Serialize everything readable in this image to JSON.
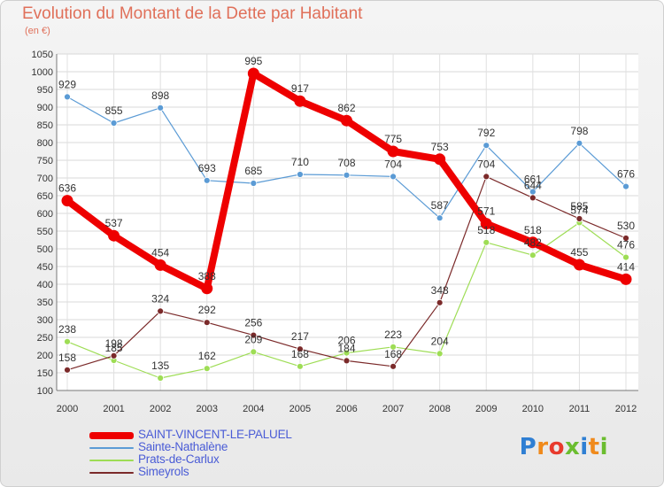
{
  "header": {
    "title": "Evolution du Montant de la Dette par Habitant",
    "subtitle": "(en €)"
  },
  "logo": {
    "text": "Proxiti"
  },
  "chart_data": {
    "type": "line",
    "title": "Evolution du Montant de la Dette par Habitant",
    "subtitle": "(en €)",
    "xlabel": "",
    "ylabel": "",
    "x": [
      "2000",
      "2001",
      "2002",
      "2003",
      "2004",
      "2005",
      "2006",
      "2007",
      "2008",
      "2009",
      "2010",
      "2011",
      "2012"
    ],
    "ylim": [
      100,
      1050
    ],
    "yticks": [
      100,
      150,
      200,
      250,
      300,
      350,
      400,
      450,
      500,
      550,
      600,
      650,
      700,
      750,
      800,
      850,
      900,
      950,
      1000,
      1050
    ],
    "grid": true,
    "legend_position": "bottom-left",
    "series": [
      {
        "name": "SAINT-VINCENT-LE-PALUEL",
        "color": "#ee0000",
        "values": [
          636,
          537,
          454,
          388,
          995,
          917,
          862,
          775,
          753,
          571,
          518,
          455,
          414
        ]
      },
      {
        "name": "Sainte-Nathalène",
        "color": "#5b9bd5",
        "values": [
          929,
          855,
          898,
          693,
          685,
          710,
          708,
          704,
          587,
          792,
          661,
          798,
          676
        ]
      },
      {
        "name": "Prats-de-Carlux",
        "color": "#9edd55",
        "values": [
          238,
          185,
          135,
          162,
          209,
          168,
          206,
          223,
          204,
          518,
          482,
          574,
          476
        ]
      },
      {
        "name": "Simeyrols",
        "color": "#7b2a2a",
        "values": [
          158,
          198,
          324,
          292,
          256,
          217,
          184,
          168,
          348,
          704,
          644,
          585,
          530
        ]
      }
    ]
  }
}
